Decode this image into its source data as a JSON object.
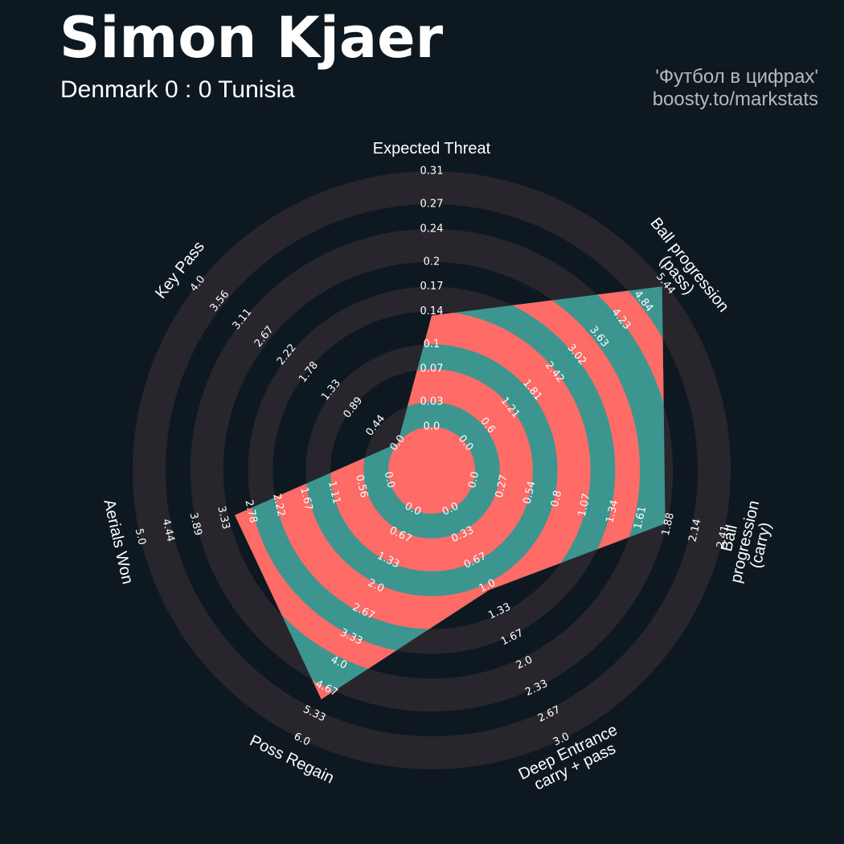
{
  "chart_data": {
    "type": "radar",
    "title": "Simon Kjaer",
    "subtitle": "Denmark 0 : 0 Tunisia",
    "credits": [
      "'Футбол в цифрах'",
      "boosty.to/markstats"
    ],
    "colors": {
      "background": "#0e1820",
      "ring": "#28252c",
      "inner": "#3d9590",
      "alternate": "#ff6b66",
      "text": "#ffffff"
    },
    "axes": [
      {
        "name": "Expected Threat",
        "lim": [
          0,
          0.31
        ],
        "value": 0.135,
        "ticks": [
          {
            "value": 0,
            "label": "0.0"
          },
          0.03,
          0.07,
          0.1,
          0.14,
          0.17,
          0.2,
          0.24,
          0.27,
          0.31
        ]
      },
      {
        "name": "Ball progression (pass)",
        "lim": [
          0,
          5.44
        ],
        "value": 5.35,
        "ticks": [
          {
            "value": 0,
            "label": "0.0"
          },
          0.6,
          1.21,
          1.81,
          2.42,
          3.02,
          3.63,
          4.23,
          4.84,
          5.44
        ]
      },
      {
        "name": "Ball progression (carry)",
        "lim": [
          0,
          2.41
        ],
        "value": 1.85,
        "ticks": [
          {
            "value": 0,
            "label": "0.0"
          },
          0.27,
          0.54,
          0.8,
          1.07,
          1.34,
          1.61,
          1.88,
          2.14,
          2.41
        ]
      },
      {
        "name": "Deep Entrance\ncarry + pass",
        "lim": [
          0,
          3
        ],
        "value": 1.05,
        "ticks": [
          {
            "value": 0,
            "label": "0.0"
          },
          0.33,
          0.67,
          {
            "value": 1,
            "label": "1.0"
          },
          1.33,
          1.67,
          {
            "value": 2,
            "label": "2.0"
          },
          2.33,
          2.67,
          {
            "value": 3,
            "label": "3.0"
          }
        ]
      },
      {
        "name": "Poss Regain",
        "lim": [
          0,
          6
        ],
        "value": 4.95,
        "ticks": [
          {
            "value": 0,
            "label": "0.0"
          },
          0.67,
          1.33,
          {
            "value": 2,
            "label": "2.0"
          },
          2.67,
          3.33,
          {
            "value": 4,
            "label": "4.0"
          },
          4.67,
          5.33,
          {
            "value": 6,
            "label": "6.0"
          }
        ]
      },
      {
        "name": "Aerials Won",
        "lim": [
          0,
          5
        ],
        "value": 3.1,
        "ticks": [
          {
            "value": 0,
            "label": "0.0"
          },
          0.56,
          1.11,
          1.67,
          2.22,
          2.78,
          3.33,
          3.89,
          4.44,
          {
            "value": 5,
            "label": "5.0"
          }
        ]
      },
      {
        "name": "Key Pass",
        "lim": [
          0,
          4
        ],
        "value": 0,
        "ticks": [
          {
            "value": 0,
            "label": "0.0"
          },
          0.44,
          0.89,
          1.33,
          1.78,
          2.22,
          2.67,
          3.11,
          3.56,
          {
            "value": 4,
            "label": "4.0"
          }
        ]
      }
    ]
  }
}
